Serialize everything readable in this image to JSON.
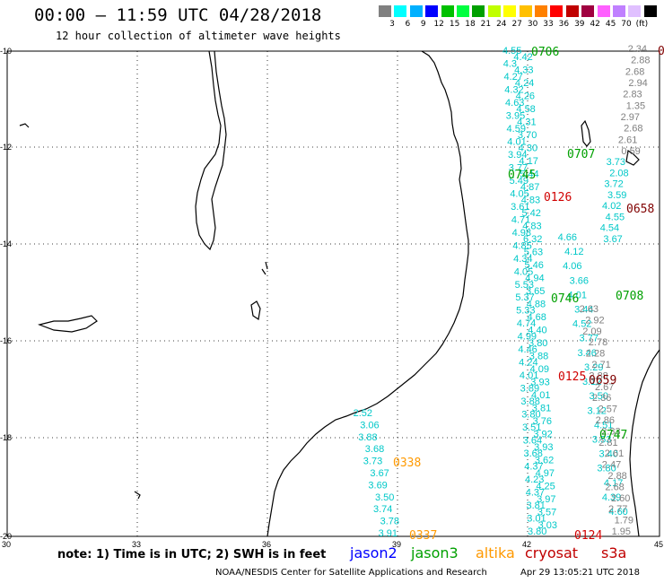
{
  "header": {
    "title": "00:00 – 11:59 UTC 04/28/2018",
    "subtitle": "12 hour collection of altimeter wave heights"
  },
  "scale": {
    "colors": [
      "#808080",
      "#00ffff",
      "#00b0ff",
      "#0000ff",
      "#00c000",
      "#00ff40",
      "#00a000",
      "#c0ff00",
      "#ffff00",
      "#ffc000",
      "#ff8000",
      "#ff0000",
      "#c00000",
      "#a00040",
      "#ff60ff",
      "#c080ff",
      "#e0c0ff",
      "#000000"
    ],
    "labels": [
      "3",
      "6",
      "9",
      "12",
      "15",
      "18",
      "21",
      "24",
      "27",
      "30",
      "33",
      "36",
      "39",
      "42",
      "45",
      "70",
      "(ft)"
    ]
  },
  "axes": {
    "x_ticks": [
      "30",
      "33",
      "36",
      "39",
      "42",
      "45"
    ],
    "y_ticks": [
      "-10",
      "-12",
      "-14",
      "-16",
      "-18",
      "-20"
    ]
  },
  "note": "note: 1) Time is in UTC; 2) SWH is in feet",
  "legend": [
    {
      "name": "jason2",
      "color": "#0000ff"
    },
    {
      "name": "jason3",
      "color": "#00a000"
    },
    {
      "name": "altika",
      "color": "#ff9900"
    },
    {
      "name": "cryosat",
      "color": "#c00000"
    },
    {
      "name": "s3a",
      "color": "#c00000"
    }
  ],
  "footer": {
    "org": "NOAA/NESDIS Center for Satellite Applications and Research",
    "timestamp": "Apr 29 13:05:21 UTC 2018"
  },
  "tracks": [
    {
      "color": "#00c8c8",
      "values": [
        "4.55",
        "4.42",
        "4.3",
        "4.33",
        "4.27",
        "4.24",
        "4.32",
        "4.26",
        "4.63",
        "4.58",
        "3.95",
        "4.31",
        "4.59",
        "3.70",
        "4.01",
        "4.30",
        "3.94",
        "4.17",
        "3.77",
        "5.44",
        "5.49",
        "4.87",
        "4.05",
        "4.83",
        "3.61",
        "5.42",
        "4.71",
        "4.83",
        "4.98",
        "6.32",
        "4.85",
        "5.63",
        "4.34",
        "5.46",
        "4.05",
        "4.94",
        "5.53",
        "3.65",
        "5.37",
        "4.88",
        "5.33",
        "4.68",
        "4.74",
        "4.40",
        "4.99",
        "3.80",
        "4.46",
        "3.88",
        "4.24",
        "4.09",
        "4.01",
        "3.93",
        "3.89",
        "4.01",
        "3.88",
        "3.81",
        "3.80",
        "3.76",
        "3.51",
        "3.92",
        "3.64",
        "3.93",
        "3.68",
        "3.62",
        "4.37",
        "4.97",
        "4.23",
        "4.25",
        "4.37",
        "3.97",
        "3.81",
        "3.57",
        "3.01",
        "3.03",
        "3.80"
      ]
    },
    {
      "color": "#00c8c8",
      "values": [
        "4.66",
        "4.12",
        "4.06",
        "3.66",
        "4.01",
        "3.44",
        "4.52",
        "3.77",
        "3.46",
        "3.29",
        "3.12",
        "3.50",
        "3.12",
        "4.51",
        "3.53",
        "3.40",
        "3.80",
        "4.17",
        "4.39",
        "4.60"
      ]
    },
    {
      "color": "#00c8c8",
      "values": [
        "2.52",
        "3.06",
        "3.88",
        "3.68",
        "3.73",
        "3.67",
        "3.69",
        "3.50",
        "3.74",
        "3.78",
        "3.91"
      ]
    },
    {
      "color": "#808080",
      "values": [
        "2.34",
        "2.88",
        "2.68",
        "2.94",
        "2.83",
        "1.35",
        "2.97",
        "2.68",
        "2.61",
        "0.59"
      ]
    },
    {
      "color": "#808080",
      "values": [
        "2.63",
        "2.92",
        "2.09",
        "2.78",
        "2.28",
        "2.71",
        "2.88",
        "2.67",
        "2.36",
        "2.57",
        "2.86",
        "2.33",
        "2.81",
        "2.61",
        "2.47",
        "2.88",
        "2.68",
        "2.60",
        "2.77",
        "1.79",
        "1.95"
      ]
    },
    {
      "color": "#00c8c8",
      "values": [
        "3.73",
        "2.08",
        "3.72",
        "3.59",
        "4.02",
        "4.55",
        "4.54",
        "3.67"
      ]
    }
  ],
  "passes": [
    {
      "label": "0706",
      "color": "#00a000"
    },
    {
      "label": "0707",
      "color": "#00a000"
    },
    {
      "label": "0745",
      "color": "#00a000"
    },
    {
      "label": "0126",
      "color": "#d00000"
    },
    {
      "label": "0658",
      "color": "#800000"
    },
    {
      "label": "0746",
      "color": "#00a000"
    },
    {
      "label": "0708",
      "color": "#00a000"
    },
    {
      "label": "0125",
      "color": "#d00000"
    },
    {
      "label": "0659",
      "color": "#800000"
    },
    {
      "label": "0747",
      "color": "#00a000"
    },
    {
      "label": "0338",
      "color": "#ff9900"
    },
    {
      "label": "0337",
      "color": "#ff9900"
    },
    {
      "label": "0124",
      "color": "#d00000"
    },
    {
      "label": "0",
      "color": "#800000"
    }
  ]
}
